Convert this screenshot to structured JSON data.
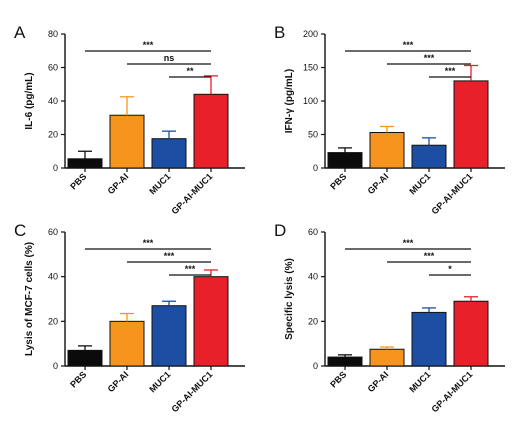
{
  "panel_colors": [
    "#0b0b0b",
    "#f7941d",
    "#1c4fa3",
    "#e8202a"
  ],
  "chart_data": [
    {
      "panel": "A",
      "type": "bar",
      "categories": [
        "PBS",
        "GP-AI",
        "MUC1",
        "GP-AI-MUC1"
      ],
      "values": [
        5.5,
        31.5,
        17.5,
        44
      ],
      "errors": [
        4.5,
        11,
        4.5,
        11
      ],
      "ylabel": "IL-6 (pg/mL)",
      "ylim": [
        0,
        80
      ],
      "yticks": [
        0,
        20,
        40,
        60,
        80
      ],
      "significance": [
        {
          "from": 0,
          "to": 3,
          "label": "***"
        },
        {
          "from": 1,
          "to": 3,
          "label": "ns"
        },
        {
          "from": 2,
          "to": 3,
          "label": "**"
        }
      ]
    },
    {
      "panel": "B",
      "type": "bar",
      "categories": [
        "PBS",
        "GP-AI",
        "MUC1",
        "GP-AI-MUC1"
      ],
      "values": [
        23,
        53,
        34,
        130
      ],
      "errors": [
        7,
        9,
        11,
        23
      ],
      "ylabel": "IFN-γ (pg/mL)",
      "ylim": [
        0,
        200
      ],
      "yticks": [
        0,
        50,
        100,
        150,
        200
      ],
      "significance": [
        {
          "from": 0,
          "to": 3,
          "label": "***"
        },
        {
          "from": 1,
          "to": 3,
          "label": "***"
        },
        {
          "from": 2,
          "to": 3,
          "label": "***"
        }
      ]
    },
    {
      "panel": "C",
      "type": "bar",
      "categories": [
        "PBS",
        "GP-AI",
        "MUC1",
        "GP-AI-MUC1"
      ],
      "values": [
        7,
        20,
        27,
        40
      ],
      "errors": [
        2,
        3.5,
        2,
        3
      ],
      "ylabel": "Lysis of MCF-7 cells (%)",
      "ylim": [
        0,
        60
      ],
      "yticks": [
        0,
        20,
        40,
        60
      ],
      "significance": [
        {
          "from": 0,
          "to": 3,
          "label": "***"
        },
        {
          "from": 1,
          "to": 3,
          "label": "***"
        },
        {
          "from": 2,
          "to": 3,
          "label": "***"
        }
      ]
    },
    {
      "panel": "D",
      "type": "bar",
      "categories": [
        "PBS",
        "GP-AI",
        "MUC1",
        "GP-AI-MUC1"
      ],
      "values": [
        4,
        7.5,
        24,
        29
      ],
      "errors": [
        1,
        1,
        2,
        2
      ],
      "ylabel": "Specific lysis (%)",
      "ylim": [
        0,
        60
      ],
      "yticks": [
        0,
        20,
        40,
        60
      ],
      "significance": [
        {
          "from": 0,
          "to": 3,
          "label": "***"
        },
        {
          "from": 1,
          "to": 3,
          "label": "***"
        },
        {
          "from": 2,
          "to": 3,
          "label": "*"
        }
      ]
    }
  ]
}
